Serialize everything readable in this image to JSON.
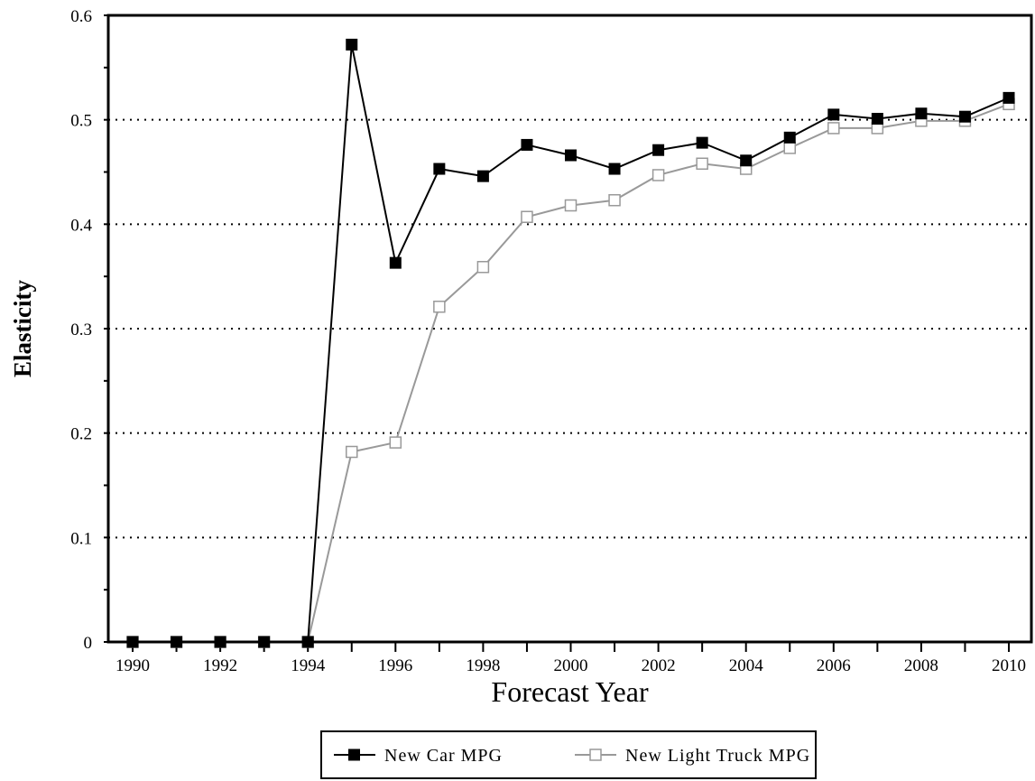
{
  "chart_data": {
    "type": "line",
    "title": "",
    "xlabel": "Forecast Year",
    "ylabel": "Elasticity",
    "x": [
      1990,
      1991,
      1992,
      1993,
      1994,
      1995,
      1996,
      1997,
      1998,
      1999,
      2000,
      2001,
      2002,
      2003,
      2004,
      2005,
      2006,
      2007,
      2008,
      2009,
      2010
    ],
    "xlim": [
      1990,
      2010
    ],
    "ylim": [
      0,
      0.6
    ],
    "x_tick_labels": [
      "1990",
      "1992",
      "1994",
      "1996",
      "1998",
      "2000",
      "2002",
      "2004",
      "2006",
      "2008",
      "2010"
    ],
    "y_tick_labels": [
      "0",
      "0.1",
      "0.2",
      "0.3",
      "0.4",
      "0.5",
      "0.6"
    ],
    "grid": "horizontal dotted",
    "legend_position": "bottom",
    "series": [
      {
        "name": "New Car MPG",
        "color": "#000000",
        "marker": "filled-square",
        "values": [
          0,
          0,
          0,
          0,
          0,
          0.572,
          0.363,
          0.453,
          0.446,
          0.476,
          0.466,
          0.453,
          0.471,
          0.478,
          0.461,
          0.483,
          0.505,
          0.501,
          0.506,
          0.503,
          0.521
        ]
      },
      {
        "name": "New Light Truck MPG",
        "color": "#999999",
        "marker": "open-square",
        "values": [
          0,
          0,
          0,
          0,
          0,
          0.182,
          0.191,
          0.321,
          0.359,
          0.407,
          0.418,
          0.423,
          0.447,
          0.458,
          0.453,
          0.473,
          0.492,
          0.492,
          0.499,
          0.499,
          0.515
        ]
      }
    ]
  }
}
